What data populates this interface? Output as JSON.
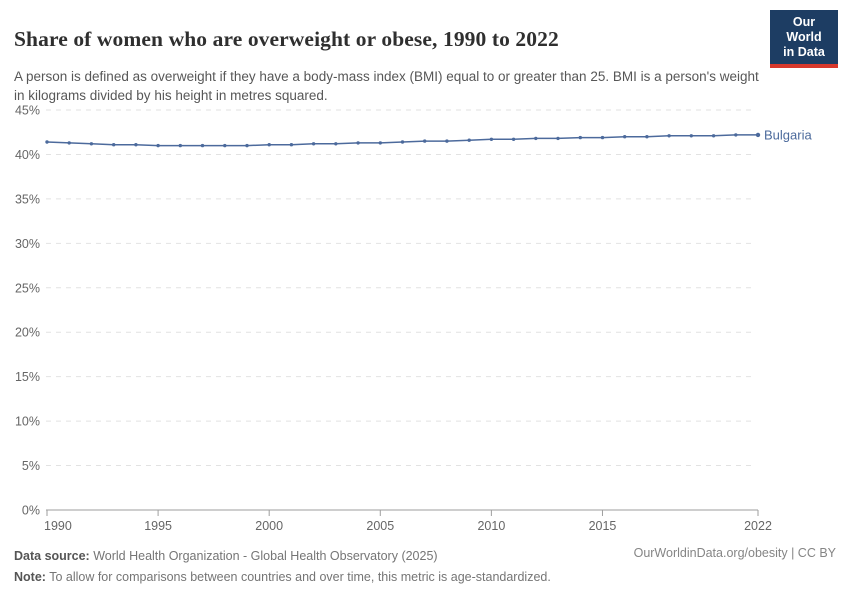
{
  "header": {
    "title": "Share of women who are overweight or obese, 1990 to 2022",
    "subtitle": "A person is defined as overweight if they have a body-mass index (BMI) equal to or greater than 25. BMI is a person's weight in kilograms divided by his height in metres squared.",
    "logo_line1": "Our World",
    "logo_line2": "in Data"
  },
  "colors": {
    "line": "#4c6a9c",
    "series_label": "#4c6a9c",
    "grid": "#e2e2e2",
    "axis": "#9e9e9e",
    "tick_label": "#666666",
    "brand_navy": "#1d3d63",
    "brand_red": "#d7382c"
  },
  "chart_data": {
    "type": "line",
    "title": "Share of women who are overweight or obese, 1990 to 2022",
    "xlabel": "",
    "ylabel": "",
    "xlim": [
      1990,
      2022
    ],
    "ylim": [
      0,
      45
    ],
    "y_ticks": [
      0,
      5,
      10,
      15,
      20,
      25,
      30,
      35,
      40,
      45
    ],
    "y_tick_suffix": "%",
    "x_ticks": [
      1990,
      1995,
      2000,
      2005,
      2010,
      2015,
      2022
    ],
    "grid": "horizontal-dashed",
    "legend_position": "end-of-line-label",
    "series": [
      {
        "name": "Bulgaria",
        "color": "#4c6a9c",
        "x": [
          1990,
          1991,
          1992,
          1993,
          1994,
          1995,
          1996,
          1997,
          1998,
          1999,
          2000,
          2001,
          2002,
          2003,
          2004,
          2005,
          2006,
          2007,
          2008,
          2009,
          2010,
          2011,
          2012,
          2013,
          2014,
          2015,
          2016,
          2017,
          2018,
          2019,
          2020,
          2021,
          2022
        ],
        "values": [
          41.4,
          41.3,
          41.2,
          41.1,
          41.1,
          41.0,
          41.0,
          41.0,
          41.0,
          41.0,
          41.1,
          41.1,
          41.2,
          41.2,
          41.3,
          41.3,
          41.4,
          41.5,
          41.5,
          41.6,
          41.7,
          41.7,
          41.8,
          41.8,
          41.9,
          41.9,
          42.0,
          42.0,
          42.1,
          42.1,
          42.1,
          42.2,
          42.2
        ]
      }
    ]
  },
  "footer": {
    "source_label": "Data source:",
    "source_rest": " World Health Organization - Global Health Observatory (2025)",
    "note_label": "Note:",
    "note_rest": " To allow for comparisons between countries and over time, this metric is age-standardized.",
    "attribution": "OurWorldinData.org/obesity | CC BY"
  }
}
